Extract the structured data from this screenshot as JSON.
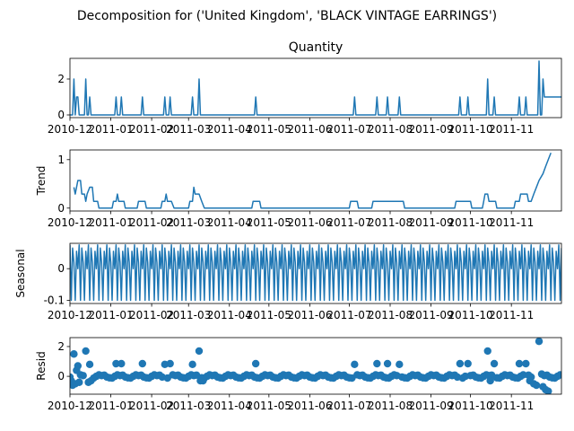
{
  "figure": {
    "suptitle": "Decomposition for ('United Kingdom', 'BLACK VINTAGE EARRINGS')"
  },
  "chart_data": [
    {
      "panel": "observed",
      "type": "line",
      "title": "Quantity",
      "ylabel": "",
      "xlim": [
        "2010-12-01",
        "2011-12-09"
      ],
      "ylim": [
        -0.15,
        3.15
      ],
      "yticks": [
        0,
        2
      ],
      "xticks": [
        "2010-12",
        "2011-01",
        "2011-02",
        "2011-03",
        "2011-04",
        "2011-05",
        "2011-06",
        "2011-07",
        "2011-08",
        "2011-09",
        "2011-10",
        "2011-11"
      ],
      "points": [
        [
          "2010-12-01",
          0
        ],
        [
          "2010-12-03",
          0
        ],
        [
          "2010-12-04",
          2
        ],
        [
          "2010-12-05",
          0
        ],
        [
          "2010-12-06",
          1
        ],
        [
          "2010-12-07",
          1
        ],
        [
          "2010-12-08",
          0
        ],
        [
          "2010-12-12",
          0
        ],
        [
          "2010-12-13",
          2
        ],
        [
          "2010-12-14",
          0
        ],
        [
          "2010-12-15",
          0
        ],
        [
          "2010-12-16",
          1
        ],
        [
          "2010-12-17",
          0
        ],
        [
          "2011-01-04",
          0
        ],
        [
          "2011-01-05",
          1
        ],
        [
          "2011-01-06",
          0
        ],
        [
          "2011-01-08",
          0
        ],
        [
          "2011-01-09",
          1
        ],
        [
          "2011-01-10",
          0
        ],
        [
          "2011-01-24",
          0
        ],
        [
          "2011-01-25",
          1
        ],
        [
          "2011-01-26",
          0
        ],
        [
          "2011-02-10",
          0
        ],
        [
          "2011-02-11",
          1
        ],
        [
          "2011-02-12",
          0
        ],
        [
          "2011-02-14",
          0
        ],
        [
          "2011-02-15",
          1
        ],
        [
          "2011-02-16",
          0
        ],
        [
          "2011-03-03",
          0
        ],
        [
          "2011-03-04",
          1
        ],
        [
          "2011-03-05",
          0
        ],
        [
          "2011-03-08",
          0
        ],
        [
          "2011-03-09",
          2
        ],
        [
          "2011-03-10",
          0
        ],
        [
          "2011-04-20",
          0
        ],
        [
          "2011-04-21",
          1
        ],
        [
          "2011-04-22",
          0
        ],
        [
          "2011-07-04",
          0
        ],
        [
          "2011-07-05",
          1
        ],
        [
          "2011-07-06",
          0
        ],
        [
          "2011-07-21",
          0
        ],
        [
          "2011-07-22",
          1
        ],
        [
          "2011-07-23",
          0
        ],
        [
          "2011-07-29",
          0
        ],
        [
          "2011-07-30",
          1
        ],
        [
          "2011-07-31",
          0
        ],
        [
          "2011-08-07",
          0
        ],
        [
          "2011-08-08",
          1
        ],
        [
          "2011-08-09",
          0
        ],
        [
          "2011-09-22",
          0
        ],
        [
          "2011-09-23",
          1
        ],
        [
          "2011-09-24",
          0
        ],
        [
          "2011-09-28",
          0
        ],
        [
          "2011-09-29",
          1
        ],
        [
          "2011-09-30",
          0
        ],
        [
          "2011-10-13",
          0
        ],
        [
          "2011-10-14",
          2
        ],
        [
          "2011-10-15",
          0
        ],
        [
          "2011-10-18",
          0
        ],
        [
          "2011-10-19",
          1
        ],
        [
          "2011-10-20",
          0
        ],
        [
          "2011-11-06",
          0
        ],
        [
          "2011-11-07",
          1
        ],
        [
          "2011-11-08",
          0
        ],
        [
          "2011-11-11",
          0
        ],
        [
          "2011-11-12",
          1
        ],
        [
          "2011-11-13",
          0
        ],
        [
          "2011-11-21",
          0
        ],
        [
          "2011-11-22",
          3
        ],
        [
          "2011-11-23",
          0
        ],
        [
          "2011-11-24",
          0
        ],
        [
          "2011-11-25",
          2
        ],
        [
          "2011-11-26",
          1
        ],
        [
          "2011-12-09",
          1
        ]
      ]
    },
    {
      "panel": "trend",
      "type": "line",
      "title": "",
      "ylabel": "Trend",
      "xlim": [
        "2010-12-01",
        "2011-12-09"
      ],
      "ylim": [
        -0.06,
        1.2
      ],
      "yticks": [
        0,
        1
      ],
      "xticks": [
        "2010-12",
        "2011-01",
        "2011-02",
        "2011-03",
        "2011-04",
        "2011-05",
        "2011-06",
        "2011-07",
        "2011-08",
        "2011-09",
        "2011-10",
        "2011-11"
      ],
      "points": [
        [
          "2010-12-04",
          0.43
        ],
        [
          "2010-12-05",
          0.29
        ],
        [
          "2010-12-06",
          0.43
        ],
        [
          "2010-12-07",
          0.57
        ],
        [
          "2010-12-09",
          0.57
        ],
        [
          "2010-12-10",
          0.29
        ],
        [
          "2010-12-12",
          0.29
        ],
        [
          "2010-12-13",
          0.14
        ],
        [
          "2010-12-14",
          0.29
        ],
        [
          "2010-12-16",
          0.43
        ],
        [
          "2010-12-18",
          0.43
        ],
        [
          "2010-12-19",
          0.14
        ],
        [
          "2010-12-22",
          0.14
        ],
        [
          "2010-12-23",
          0
        ],
        [
          "2011-01-02",
          0
        ],
        [
          "2011-01-03",
          0.14
        ],
        [
          "2011-01-05",
          0.14
        ],
        [
          "2011-01-06",
          0.29
        ],
        [
          "2011-01-07",
          0.14
        ],
        [
          "2011-01-11",
          0.14
        ],
        [
          "2011-01-12",
          0
        ],
        [
          "2011-01-21",
          0
        ],
        [
          "2011-01-22",
          0.14
        ],
        [
          "2011-01-27",
          0.14
        ],
        [
          "2011-01-28",
          0
        ],
        [
          "2011-02-08",
          0
        ],
        [
          "2011-02-09",
          0.14
        ],
        [
          "2011-02-11",
          0.14
        ],
        [
          "2011-02-12",
          0.29
        ],
        [
          "2011-02-13",
          0.14
        ],
        [
          "2011-02-16",
          0.14
        ],
        [
          "2011-02-18",
          0
        ],
        [
          "2011-03-01",
          0
        ],
        [
          "2011-03-02",
          0.14
        ],
        [
          "2011-03-04",
          0.14
        ],
        [
          "2011-03-05",
          0.43
        ],
        [
          "2011-03-06",
          0.29
        ],
        [
          "2011-03-09",
          0.29
        ],
        [
          "2011-03-11",
          0.14
        ],
        [
          "2011-03-13",
          0
        ],
        [
          "2011-04-18",
          0
        ],
        [
          "2011-04-19",
          0.14
        ],
        [
          "2011-04-24",
          0.14
        ],
        [
          "2011-04-25",
          0
        ],
        [
          "2011-07-01",
          0
        ],
        [
          "2011-07-02",
          0.14
        ],
        [
          "2011-07-07",
          0.14
        ],
        [
          "2011-07-08",
          0
        ],
        [
          "2011-07-18",
          0
        ],
        [
          "2011-07-19",
          0.14
        ],
        [
          "2011-08-11",
          0.14
        ],
        [
          "2011-08-12",
          0
        ],
        [
          "2011-09-19",
          0
        ],
        [
          "2011-09-20",
          0.14
        ],
        [
          "2011-10-01",
          0.14
        ],
        [
          "2011-10-02",
          0
        ],
        [
          "2011-10-10",
          0
        ],
        [
          "2011-10-11",
          0.14
        ],
        [
          "2011-10-12",
          0.29
        ],
        [
          "2011-10-14",
          0.29
        ],
        [
          "2011-10-15",
          0.14
        ],
        [
          "2011-10-20",
          0.14
        ],
        [
          "2011-10-21",
          0
        ],
        [
          "2011-11-03",
          0
        ],
        [
          "2011-11-04",
          0.14
        ],
        [
          "2011-11-07",
          0.14
        ],
        [
          "2011-11-08",
          0.29
        ],
        [
          "2011-11-13",
          0.29
        ],
        [
          "2011-11-14",
          0.14
        ],
        [
          "2011-11-16",
          0.14
        ],
        [
          "2011-11-18",
          0.29
        ],
        [
          "2011-11-20",
          0.43
        ],
        [
          "2011-11-22",
          0.57
        ],
        [
          "2011-11-25",
          0.71
        ],
        [
          "2011-11-27",
          0.86
        ],
        [
          "2011-11-29",
          1.0
        ],
        [
          "2011-12-01",
          1.14
        ]
      ]
    },
    {
      "panel": "seasonal",
      "type": "line",
      "title": "",
      "ylabel": "Seasonal",
      "xlim": [
        "2010-12-01",
        "2011-12-09"
      ],
      "ylim": [
        -0.11,
        0.08
      ],
      "yticks": [
        -0.1,
        0.0
      ],
      "xticks": [
        "2010-12",
        "2011-01",
        "2011-02",
        "2011-03",
        "2011-04",
        "2011-05",
        "2011-06",
        "2011-07",
        "2011-08",
        "2011-09",
        "2011-10",
        "2011-11"
      ],
      "period": 7,
      "pattern": [
        0.075,
        -0.1,
        0.065,
        0.02,
        -0.1,
        0.055,
        0.0
      ],
      "start": "2010-12-01",
      "end": "2011-12-09"
    },
    {
      "panel": "resid",
      "type": "scatter",
      "title": "",
      "ylabel": "Resid",
      "xlim": [
        "2010-12-01",
        "2011-12-09"
      ],
      "ylim": [
        -1.2,
        2.6
      ],
      "yticks": [
        0,
        2
      ],
      "xticks": [
        "2010-12",
        "2011-01",
        "2011-02",
        "2011-03",
        "2011-04",
        "2011-05",
        "2011-06",
        "2011-07",
        "2011-08",
        "2011-09",
        "2011-10",
        "2011-11"
      ],
      "baseline_days": {
        "start": "2010-12-01",
        "end": "2011-12-09",
        "base": 0.0,
        "jitter": [
          -0.05,
          0.1,
          -0.1,
          0.05,
          -0.12,
          0.08,
          0.0
        ]
      },
      "points": [
        [
          "2010-12-02",
          -0.3
        ],
        [
          "2010-12-03",
          -0.6
        ],
        [
          "2010-12-04",
          1.5
        ],
        [
          "2010-12-05",
          -0.5
        ],
        [
          "2010-12-06",
          0.4
        ],
        [
          "2010-12-07",
          0.7
        ],
        [
          "2010-12-08",
          -0.4
        ],
        [
          "2010-12-13",
          1.7
        ],
        [
          "2010-12-15",
          -0.4
        ],
        [
          "2010-12-16",
          0.8
        ],
        [
          "2010-12-17",
          -0.3
        ],
        [
          "2011-01-05",
          0.85
        ],
        [
          "2011-01-09",
          0.85
        ],
        [
          "2011-01-25",
          0.85
        ],
        [
          "2011-02-11",
          0.8
        ],
        [
          "2011-02-15",
          0.85
        ],
        [
          "2011-03-04",
          0.8
        ],
        [
          "2011-03-09",
          1.7
        ],
        [
          "2011-03-10",
          -0.3
        ],
        [
          "2011-03-12",
          -0.3
        ],
        [
          "2011-04-21",
          0.85
        ],
        [
          "2011-07-05",
          0.8
        ],
        [
          "2011-07-22",
          0.85
        ],
        [
          "2011-07-30",
          0.85
        ],
        [
          "2011-08-08",
          0.8
        ],
        [
          "2011-09-23",
          0.85
        ],
        [
          "2011-09-29",
          0.85
        ],
        [
          "2011-10-14",
          1.7
        ],
        [
          "2011-10-16",
          -0.3
        ],
        [
          "2011-10-19",
          0.85
        ],
        [
          "2011-11-07",
          0.85
        ],
        [
          "2011-11-12",
          0.85
        ],
        [
          "2011-11-15",
          -0.3
        ],
        [
          "2011-11-18",
          -0.5
        ],
        [
          "2011-11-20",
          -0.6
        ],
        [
          "2011-11-22",
          2.35
        ],
        [
          "2011-11-24",
          0.15
        ],
        [
          "2011-11-25",
          -0.7
        ],
        [
          "2011-11-27",
          -0.9
        ],
        [
          "2011-11-29",
          -1.0
        ]
      ]
    }
  ]
}
